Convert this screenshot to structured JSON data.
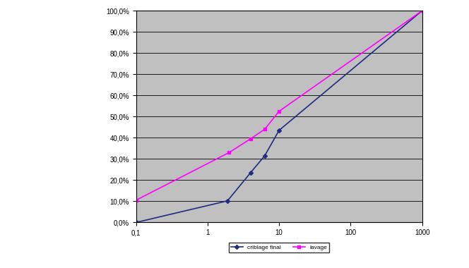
{
  "chart_data": {
    "type": "line",
    "log": "x",
    "grid": true,
    "legend": "bottom",
    "xlim": [
      0.1,
      1000
    ],
    "xticks": [
      {
        "value": 0.1,
        "label": "0,1"
      },
      1,
      10,
      100,
      1000
    ],
    "ylim": [
      0,
      100
    ],
    "yticks": [
      {
        "value": 0,
        "label": "0,0%"
      },
      {
        "value": 10,
        "label": "10,0%"
      },
      {
        "value": 20,
        "label": "20,0%"
      },
      {
        "value": 30,
        "label": "30,0%"
      },
      {
        "value": 40,
        "label": "40,0%"
      },
      {
        "value": 50,
        "label": "50,0%"
      },
      {
        "value": 60,
        "label": "60,0%"
      },
      {
        "value": 70,
        "label": "70,0%"
      },
      {
        "value": 80,
        "label": "80,0%"
      },
      {
        "value": 90,
        "label": "90,0%"
      },
      {
        "value": 100,
        "label": "100,0%"
      }
    ],
    "series": [
      {
        "name": "criblage final",
        "color": "#1f2a80",
        "marker": "diamond",
        "line_style": "solid",
        "x": [
          0.1,
          1.9,
          4,
          6.3,
          10,
          1000
        ],
        "values": [
          0.0,
          10.2,
          23.5,
          31.5,
          43.5,
          100.0
        ]
      },
      {
        "name": "lavage",
        "color": "#ff00ff",
        "marker": "square",
        "line_style": "solid",
        "x": [
          0.1,
          2,
          4,
          6.3,
          10,
          1000
        ],
        "values": [
          10.5,
          33.0,
          39.5,
          44.0,
          52.5,
          100.0
        ]
      }
    ]
  }
}
